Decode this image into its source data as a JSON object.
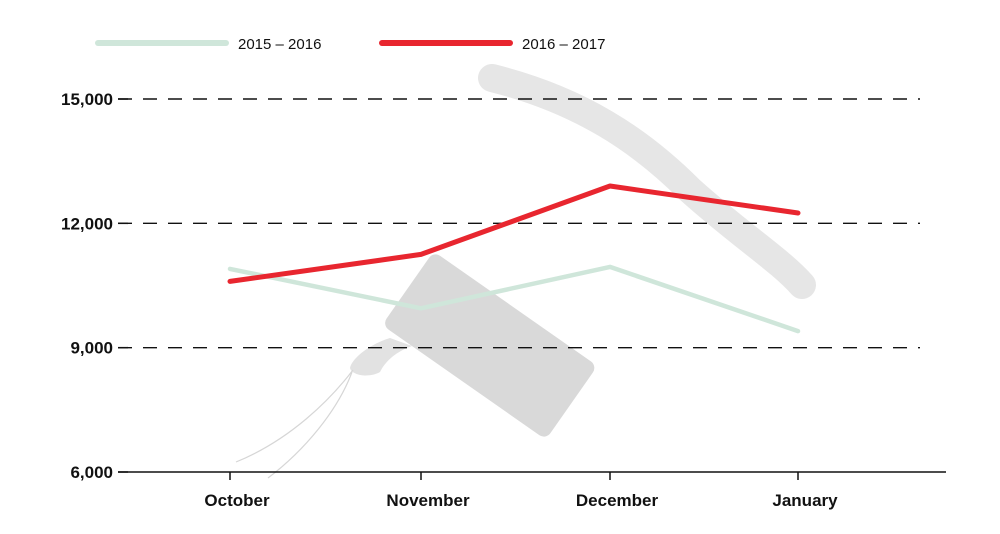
{
  "chart_data": {
    "type": "line",
    "categories": [
      "October",
      "November",
      "December",
      "January"
    ],
    "series": [
      {
        "name": "2015 – 2016",
        "values": [
          10900,
          9950,
          10950,
          9400
        ],
        "color": "#cfe6da"
      },
      {
        "name": "2016 – 2017",
        "values": [
          10600,
          11250,
          12900,
          12250
        ],
        "color": "#e8262f"
      }
    ],
    "y_ticks": [
      {
        "value": 15000,
        "label": "15,000"
      },
      {
        "value": 12000,
        "label": "12,000"
      },
      {
        "value": 9000,
        "label": "9,000"
      },
      {
        "value": 6000,
        "label": "6,000"
      }
    ],
    "ylim": [
      6000,
      15000
    ],
    "grid": "dashed horizontal",
    "legend_position": "top-left",
    "background_illustration": "tampon-icon"
  }
}
